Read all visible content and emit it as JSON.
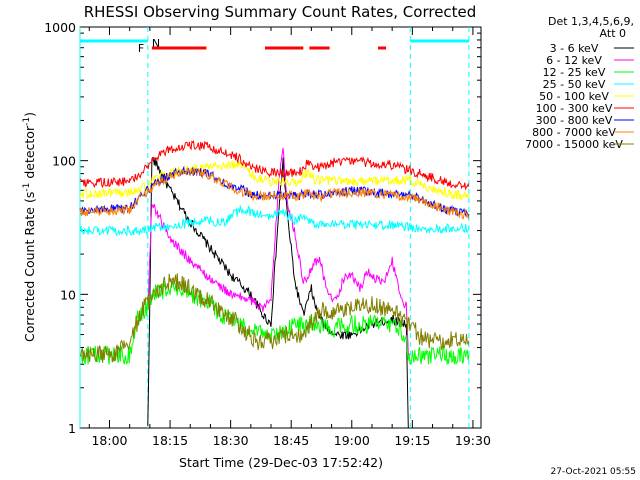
{
  "chart_data": {
    "type": "line",
    "title": "RHESSI Observing Summary Count Rates, Corrected",
    "xlabel": "Start Time (29-Dec-03 17:52:42)",
    "ylabel": "Corrected Count Rate (s⁻¹ detector⁻¹)",
    "ylabel_main": "Corrected Count Rate (s",
    "ylabel_sup1": "-1",
    "ylabel_mid": " detector",
    "ylabel_sup2": "-1",
    "ylabel_end": ")",
    "yscale": "log",
    "ylim": [
      1,
      1000
    ],
    "xlim": [
      "17:52:42",
      "19:32:00"
    ],
    "x_ticks": [
      "18:00",
      "18:15",
      "18:30",
      "18:45",
      "19:00",
      "19:15",
      "19:30"
    ],
    "y_ticks": [
      "1",
      "10",
      "100",
      "1000"
    ],
    "grid": false,
    "legend_placement": "outside-right",
    "legend_header": [
      "Det 1,3,4,5,6,9,",
      "Att 0"
    ],
    "timestamp": "27-Oct-2021 05:55",
    "annotations": {
      "flare_marker": "F",
      "night_marker": "N"
    },
    "night_periods": [
      {
        "start": "17:52:42",
        "end": "18:09:30"
      },
      {
        "start": "19:14:30",
        "end": "19:29:00"
      }
    ],
    "flare_periods": [
      {
        "start": "18:10:30",
        "end": "18:24:00"
      },
      {
        "start": "18:38:30",
        "end": "18:48:00"
      },
      {
        "start": "18:49:30",
        "end": "18:54:30"
      },
      {
        "start": "19:06:30",
        "end": "19:08:30"
      }
    ],
    "series": [
      {
        "name": "3 - 6 keV",
        "color": "#000000",
        "points": [
          [
            "18:09:30",
            1
          ],
          [
            "18:10:30",
            105
          ],
          [
            "18:12:00",
            90
          ],
          [
            "18:15:00",
            60
          ],
          [
            "18:20:00",
            35
          ],
          [
            "18:25:00",
            22
          ],
          [
            "18:30:00",
            14
          ],
          [
            "18:35:00",
            10
          ],
          [
            "18:38:00",
            7
          ],
          [
            "18:40:00",
            6
          ],
          [
            "18:42:00",
            45
          ],
          [
            "18:43:00",
            100
          ],
          [
            "18:44:00",
            40
          ],
          [
            "18:46:00",
            12
          ],
          [
            "18:48:00",
            7
          ],
          [
            "18:50:00",
            11
          ],
          [
            "18:51:00",
            8
          ],
          [
            "18:53:00",
            6
          ],
          [
            "18:56:00",
            5
          ],
          [
            "19:00:00",
            5
          ],
          [
            "19:05:00",
            6
          ],
          [
            "19:10:00",
            6.5
          ],
          [
            "19:13:30",
            6
          ],
          [
            "19:14:00",
            1
          ]
        ]
      },
      {
        "name": "6 - 12 keV",
        "color": "#ff00ff",
        "points": [
          [
            "18:09:30",
            8
          ],
          [
            "18:10:30",
            48
          ],
          [
            "18:12:00",
            40
          ],
          [
            "18:15:00",
            26
          ],
          [
            "18:20:00",
            18
          ],
          [
            "18:25:00",
            13
          ],
          [
            "18:30:00",
            10
          ],
          [
            "18:35:00",
            9
          ],
          [
            "18:38:00",
            8
          ],
          [
            "18:40:00",
            9
          ],
          [
            "18:42:00",
            80
          ],
          [
            "18:43:00",
            125
          ],
          [
            "18:44:00",
            50
          ],
          [
            "18:46:00",
            28
          ],
          [
            "18:48:00",
            12
          ],
          [
            "18:50:00",
            16
          ],
          [
            "18:52:00",
            19
          ],
          [
            "18:54:00",
            10
          ],
          [
            "18:56:00",
            9
          ],
          [
            "18:58:00",
            13
          ],
          [
            "19:00:00",
            14
          ],
          [
            "19:02:00",
            11
          ],
          [
            "19:04:00",
            15
          ],
          [
            "19:06:00",
            13
          ],
          [
            "19:08:00",
            12
          ],
          [
            "19:10:00",
            18
          ],
          [
            "19:12:00",
            10
          ],
          [
            "19:13:30",
            8
          ],
          [
            "19:14:00",
            3.5
          ]
        ]
      },
      {
        "name": "12 - 25 keV",
        "color": "#00ff00",
        "points": [
          [
            "17:52:42",
            3.5
          ],
          [
            "18:05:00",
            3.5
          ],
          [
            "18:07:00",
            6.5
          ],
          [
            "18:09:30",
            8
          ],
          [
            "18:11:00",
            10
          ],
          [
            "18:14:00",
            11
          ],
          [
            "18:17:00",
            11
          ],
          [
            "18:20:00",
            10
          ],
          [
            "18:24:00",
            9
          ],
          [
            "18:28:00",
            7
          ],
          [
            "18:32:00",
            6
          ],
          [
            "18:36:00",
            5.5
          ],
          [
            "18:40:00",
            5
          ],
          [
            "18:43:00",
            5
          ],
          [
            "18:46:00",
            6
          ],
          [
            "18:50:00",
            6
          ],
          [
            "18:55:00",
            5.5
          ],
          [
            "19:00:00",
            6
          ],
          [
            "19:05:00",
            6
          ],
          [
            "19:10:00",
            6
          ],
          [
            "19:13:30",
            5
          ],
          [
            "19:14:00",
            3.5
          ],
          [
            "19:29:00",
            3.5
          ]
        ]
      },
      {
        "name": "25 - 50 keV",
        "color": "#00ffff",
        "points": [
          [
            "17:52:42",
            30
          ],
          [
            "18:05:00",
            30
          ],
          [
            "18:08:00",
            30
          ],
          [
            "18:12:00",
            32
          ],
          [
            "18:16:00",
            33
          ],
          [
            "18:20:00",
            34
          ],
          [
            "18:24:00",
            36
          ],
          [
            "18:28:00",
            34
          ],
          [
            "18:31:00",
            40
          ],
          [
            "18:33:00",
            44
          ],
          [
            "18:36:00",
            40
          ],
          [
            "18:40:00",
            38
          ],
          [
            "18:43:00",
            42
          ],
          [
            "18:46:00",
            35
          ],
          [
            "18:48:00",
            40
          ],
          [
            "18:50:00",
            34
          ],
          [
            "18:55:00",
            34
          ],
          [
            "19:00:00",
            33
          ],
          [
            "19:05:00",
            33
          ],
          [
            "19:10:00",
            33
          ],
          [
            "19:14:00",
            32
          ],
          [
            "19:20:00",
            31
          ],
          [
            "19:29:00",
            31
          ]
        ]
      },
      {
        "name": "50 - 100 keV",
        "color": "#ffff00",
        "points": [
          [
            "17:52:42",
            56
          ],
          [
            "18:05:00",
            58
          ],
          [
            "18:08:00",
            62
          ],
          [
            "18:12:00",
            75
          ],
          [
            "18:16:00",
            82
          ],
          [
            "18:20:00",
            85
          ],
          [
            "18:24:00",
            88
          ],
          [
            "18:28:00",
            92
          ],
          [
            "18:32:00",
            95
          ],
          [
            "18:36:00",
            75
          ],
          [
            "18:40:00",
            70
          ],
          [
            "18:44:00",
            70
          ],
          [
            "18:47:00",
            69
          ],
          [
            "18:49:00",
            82
          ],
          [
            "18:51:00",
            72
          ],
          [
            "18:55:00",
            70
          ],
          [
            "19:00:00",
            70
          ],
          [
            "19:05:00",
            70
          ],
          [
            "19:10:00",
            72
          ],
          [
            "19:14:00",
            72
          ],
          [
            "19:20:00",
            62
          ],
          [
            "19:25:00",
            56
          ],
          [
            "19:29:00",
            54
          ]
        ]
      },
      {
        "name": "100 - 300 keV",
        "color": "#ff0000",
        "points": [
          [
            "17:52:42",
            67
          ],
          [
            "18:05:00",
            70
          ],
          [
            "18:08:00",
            82
          ],
          [
            "18:12:00",
            110
          ],
          [
            "18:16:00",
            125
          ],
          [
            "18:20:00",
            132
          ],
          [
            "18:24:00",
            128
          ],
          [
            "18:28:00",
            115
          ],
          [
            "18:32:00",
            105
          ],
          [
            "18:35:00",
            90
          ],
          [
            "18:40:00",
            82
          ],
          [
            "18:44:00",
            82
          ],
          [
            "18:47:00",
            82
          ],
          [
            "18:49:00",
            95
          ],
          [
            "18:52:00",
            88
          ],
          [
            "18:56:00",
            98
          ],
          [
            "19:00:00",
            100
          ],
          [
            "19:05:00",
            95
          ],
          [
            "19:10:00",
            93
          ],
          [
            "19:14:00",
            85
          ],
          [
            "19:18:00",
            78
          ],
          [
            "19:24:00",
            68
          ],
          [
            "19:29:00",
            64
          ]
        ]
      },
      {
        "name": "300 - 800 keV",
        "color": "#0000ff",
        "points": [
          [
            "17:52:42",
            42
          ],
          [
            "18:05:00",
            44
          ],
          [
            "18:08:00",
            55
          ],
          [
            "18:12:00",
            70
          ],
          [
            "18:16:00",
            80
          ],
          [
            "18:20:00",
            85
          ],
          [
            "18:24:00",
            80
          ],
          [
            "18:28:00",
            70
          ],
          [
            "18:32:00",
            62
          ],
          [
            "18:36:00",
            55
          ],
          [
            "18:40:00",
            55
          ],
          [
            "18:44:00",
            56
          ],
          [
            "18:47:00",
            55
          ],
          [
            "18:49:00",
            58
          ],
          [
            "18:52:00",
            55
          ],
          [
            "18:56:00",
            58
          ],
          [
            "19:00:00",
            60
          ],
          [
            "19:05:00",
            58
          ],
          [
            "19:10:00",
            56
          ],
          [
            "19:14:00",
            55
          ],
          [
            "19:18:00",
            50
          ],
          [
            "19:24:00",
            43
          ],
          [
            "19:29:00",
            40
          ]
        ]
      },
      {
        "name": "800 - 7000 keV",
        "color": "#ff8000",
        "points": [
          [
            "17:52:42",
            41
          ],
          [
            "18:05:00",
            43
          ],
          [
            "18:08:00",
            54
          ],
          [
            "18:12:00",
            68
          ],
          [
            "18:16:00",
            78
          ],
          [
            "18:20:00",
            83
          ],
          [
            "18:24:00",
            78
          ],
          [
            "18:28:00",
            68
          ],
          [
            "18:32:00",
            60
          ],
          [
            "18:36:00",
            54
          ],
          [
            "18:40:00",
            54
          ],
          [
            "18:44:00",
            55
          ],
          [
            "18:47:00",
            54
          ],
          [
            "18:49:00",
            57
          ],
          [
            "18:52:00",
            54
          ],
          [
            "18:56:00",
            57
          ],
          [
            "19:00:00",
            58
          ],
          [
            "19:05:00",
            57
          ],
          [
            "19:10:00",
            55
          ],
          [
            "19:14:00",
            54
          ],
          [
            "19:18:00",
            49
          ],
          [
            "19:24:00",
            42
          ],
          [
            "19:29:00",
            39
          ]
        ]
      },
      {
        "name": "7000 - 15000 keV",
        "color": "#808000",
        "points": [
          [
            "17:52:42",
            3.5
          ],
          [
            "18:02:00",
            3.6
          ],
          [
            "18:05:00",
            4.5
          ],
          [
            "18:08:00",
            7.5
          ],
          [
            "18:11:00",
            10
          ],
          [
            "18:14:00",
            12
          ],
          [
            "18:17:00",
            12.5
          ],
          [
            "18:20:00",
            11
          ],
          [
            "18:24:00",
            9
          ],
          [
            "18:28:00",
            7.5
          ],
          [
            "18:32:00",
            6
          ],
          [
            "18:36:00",
            4.5
          ],
          [
            "18:40:00",
            4.5
          ],
          [
            "18:44:00",
            5
          ],
          [
            "18:48:00",
            5
          ],
          [
            "18:52:00",
            7.5
          ],
          [
            "18:56:00",
            7.5
          ],
          [
            "19:00:00",
            8
          ],
          [
            "19:05:00",
            8.5
          ],
          [
            "19:10:00",
            7.5
          ],
          [
            "19:14:00",
            6
          ],
          [
            "19:18:00",
            4.5
          ],
          [
            "19:22:00",
            4.5
          ],
          [
            "19:29:00",
            4.5
          ]
        ]
      }
    ]
  }
}
